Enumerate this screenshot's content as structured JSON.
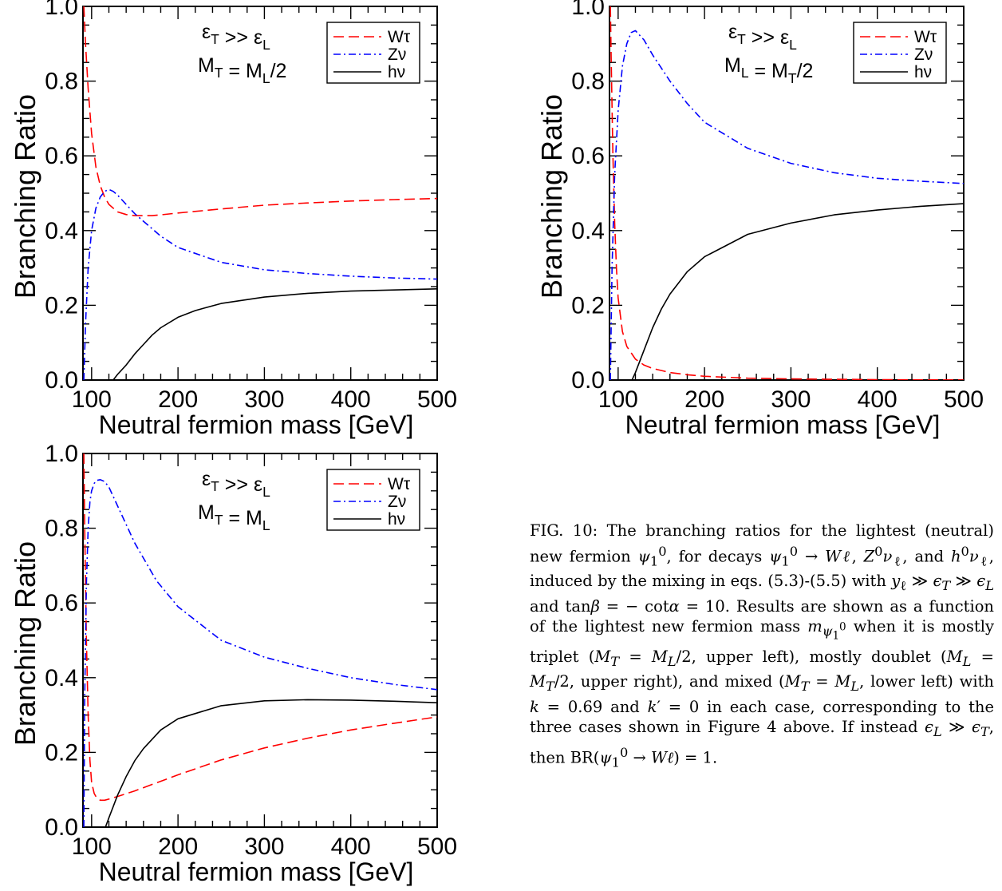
{
  "caption": {
    "text": "FIG. 10: The branching ratios for the lightest (neutral) new fermion ψ₁⁰, for decays ψ₁⁰ → Wℓ, Z⁰νℓ, and h⁰νℓ, induced by the mixing in eqs. (5.3)-(5.5) with yℓ ≫ ϵT ≫ ϵL and tanβ = −cotα = 10. Results are shown as a function of the lightest new fermion mass mψ₁⁰ when it is mostly triplet (MT = ML/2, upper left), mostly doublet (ML = MT/2, upper right), and mixed (MT = ML, lower left) with k = 0.69 and k′ = 0 in each case, corresponding to the three cases shown in Figure 4 above. If instead ϵL ≫ ϵT, then BR(ψ₁⁰ → Wℓ) = 1."
  },
  "chart_data": [
    {
      "type": "line",
      "panel": "upper-left",
      "xlabel": "Neutral fermion mass [GeV]",
      "ylabel": "Branching Ratio",
      "xlim": [
        90,
        500
      ],
      "ylim": [
        0,
        1
      ],
      "xticks": [
        100,
        200,
        300,
        400,
        500
      ],
      "yticks": [
        0.0,
        0.2,
        0.4,
        0.6,
        0.8,
        1.0
      ],
      "annotation_line1": "εT >> εL",
      "annotation_line2": "MT = ML/2",
      "legend_position": "top-right",
      "series": [
        {
          "name": "Wτ",
          "color": "#ff0000",
          "dash": "dashed",
          "x": [
            91,
            93,
            96,
            100,
            105,
            110,
            115,
            120,
            130,
            140,
            150,
            160,
            170,
            180,
            200,
            250,
            300,
            350,
            400,
            450,
            500
          ],
          "y": [
            1.0,
            0.9,
            0.78,
            0.66,
            0.57,
            0.52,
            0.49,
            0.47,
            0.45,
            0.443,
            0.44,
            0.44,
            0.44,
            0.442,
            0.447,
            0.458,
            0.468,
            0.474,
            0.479,
            0.483,
            0.486
          ]
        },
        {
          "name": "Zν",
          "color": "#0000ff",
          "dash": "dashdot",
          "x": [
            91,
            93,
            96,
            100,
            105,
            110,
            115,
            120,
            125,
            130,
            140,
            150,
            160,
            180,
            200,
            250,
            300,
            350,
            400,
            450,
            500
          ],
          "y": [
            0.0,
            0.15,
            0.3,
            0.4,
            0.46,
            0.49,
            0.505,
            0.51,
            0.505,
            0.495,
            0.47,
            0.445,
            0.425,
            0.385,
            0.355,
            0.315,
            0.295,
            0.285,
            0.278,
            0.273,
            0.27
          ]
        },
        {
          "name": "hν",
          "color": "#000000",
          "dash": "solid",
          "x": [
            125,
            130,
            140,
            150,
            160,
            170,
            180,
            200,
            220,
            250,
            300,
            350,
            400,
            450,
            500
          ],
          "y": [
            0.0,
            0.015,
            0.04,
            0.07,
            0.095,
            0.12,
            0.14,
            0.168,
            0.186,
            0.205,
            0.222,
            0.232,
            0.238,
            0.241,
            0.244
          ]
        }
      ]
    },
    {
      "type": "line",
      "panel": "upper-right",
      "xlabel": "Neutral fermion mass [GeV]",
      "ylabel": "Branching Ratio",
      "xlim": [
        90,
        500
      ],
      "ylim": [
        0,
        1
      ],
      "xticks": [
        100,
        200,
        300,
        400,
        500
      ],
      "yticks": [
        0.0,
        0.2,
        0.4,
        0.6,
        0.8,
        1.0
      ],
      "annotation_line1": "εT >> εL",
      "annotation_line2": "ML = MT/2",
      "legend_position": "top-right",
      "series": [
        {
          "name": "Wτ",
          "color": "#ff0000",
          "dash": "dashed",
          "x": [
            91,
            92,
            94,
            96,
            98,
            100,
            105,
            110,
            120,
            130,
            140,
            160,
            180,
            200,
            250,
            300,
            400,
            500
          ],
          "y": [
            1.0,
            0.85,
            0.6,
            0.42,
            0.3,
            0.22,
            0.13,
            0.09,
            0.056,
            0.04,
            0.031,
            0.02,
            0.014,
            0.01,
            0.005,
            0.003,
            0.001,
            0.0
          ]
        },
        {
          "name": "Zν",
          "color": "#0000ff",
          "dash": "dashdot",
          "x": [
            91,
            93,
            96,
            100,
            105,
            110,
            115,
            120,
            130,
            140,
            160,
            180,
            200,
            250,
            300,
            350,
            400,
            450,
            500
          ],
          "y": [
            0.0,
            0.3,
            0.55,
            0.72,
            0.84,
            0.9,
            0.93,
            0.935,
            0.91,
            0.87,
            0.8,
            0.74,
            0.69,
            0.62,
            0.58,
            0.555,
            0.54,
            0.532,
            0.526
          ]
        },
        {
          "name": "hν",
          "color": "#000000",
          "dash": "solid",
          "x": [
            116,
            120,
            125,
            130,
            140,
            150,
            160,
            180,
            200,
            250,
            300,
            350,
            400,
            450,
            500
          ],
          "y": [
            0.0,
            0.02,
            0.05,
            0.08,
            0.14,
            0.19,
            0.23,
            0.29,
            0.33,
            0.39,
            0.42,
            0.442,
            0.455,
            0.465,
            0.472
          ]
        }
      ]
    },
    {
      "type": "line",
      "panel": "lower-left",
      "xlabel": "Neutral fermion mass [GeV]",
      "ylabel": "Branching Ratio",
      "xlim": [
        90,
        500
      ],
      "ylim": [
        0,
        1
      ],
      "xticks": [
        100,
        200,
        300,
        400,
        500
      ],
      "yticks": [
        0.0,
        0.2,
        0.4,
        0.6,
        0.8,
        1.0
      ],
      "annotation_line1": "εT >> εL",
      "annotation_line2": "MT = ML",
      "legend_position": "top-right",
      "series": [
        {
          "name": "Wτ",
          "color": "#ff0000",
          "dash": "dashed",
          "x": [
            91,
            92,
            94,
            96,
            98,
            100,
            103,
            106,
            110,
            115,
            120,
            130,
            150,
            200,
            250,
            300,
            350,
            400,
            450,
            500
          ],
          "y": [
            1.0,
            0.8,
            0.5,
            0.3,
            0.18,
            0.12,
            0.09,
            0.078,
            0.072,
            0.072,
            0.075,
            0.082,
            0.097,
            0.14,
            0.18,
            0.212,
            0.238,
            0.26,
            0.278,
            0.295
          ]
        },
        {
          "name": "Zν",
          "color": "#0000ff",
          "dash": "dashdot",
          "x": [
            91,
            92,
            94,
            96,
            98,
            100,
            103,
            106,
            110,
            115,
            120,
            130,
            150,
            175,
            200,
            250,
            300,
            350,
            400,
            450,
            500
          ],
          "y": [
            0.0,
            0.35,
            0.65,
            0.8,
            0.87,
            0.9,
            0.92,
            0.928,
            0.93,
            0.925,
            0.91,
            0.86,
            0.76,
            0.66,
            0.59,
            0.5,
            0.455,
            0.425,
            0.4,
            0.382,
            0.368
          ]
        },
        {
          "name": "hν",
          "color": "#000000",
          "dash": "solid",
          "x": [
            116,
            120,
            125,
            130,
            140,
            150,
            160,
            180,
            200,
            250,
            300,
            350,
            400,
            450,
            500
          ],
          "y": [
            0.0,
            0.025,
            0.055,
            0.085,
            0.135,
            0.178,
            0.21,
            0.26,
            0.29,
            0.325,
            0.338,
            0.341,
            0.34,
            0.337,
            0.333
          ]
        }
      ]
    }
  ]
}
